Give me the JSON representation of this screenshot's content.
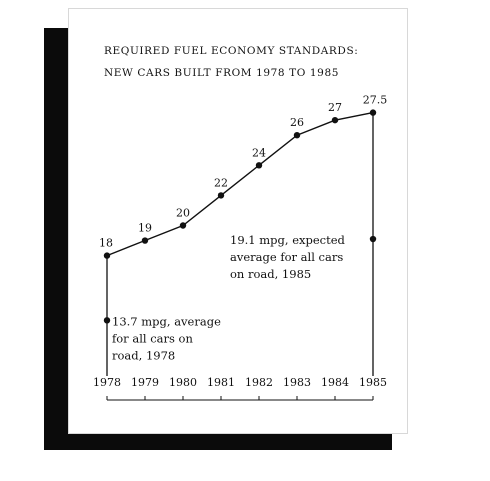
{
  "chart_data": {
    "type": "line",
    "title": [
      "REQUIRED FUEL ECONOMY STANDARDS:",
      "NEW CARS BUILT FROM 1978 TO 1985"
    ],
    "categories": [
      "1978",
      "1979",
      "1980",
      "1981",
      "1982",
      "1983",
      "1984",
      "1985"
    ],
    "series": [
      {
        "values": [
          18,
          19,
          20,
          22,
          24,
          26,
          27,
          27.5
        ]
      }
    ],
    "value_labels": [
      "18",
      "19",
      "20",
      "22",
      "24",
      "26",
      "27",
      "27.5"
    ],
    "ylim": [
      10,
      30
    ],
    "grid": false,
    "annotations": [
      {
        "category": "1978",
        "value": 13.7,
        "lines": [
          "13.7 mpg, average",
          "for all cars on",
          "road, 1978"
        ]
      },
      {
        "category": "1985",
        "value": 19.1,
        "lines": [
          "19.1 mpg, expected",
          "average for all cars",
          "on road, 1985"
        ]
      }
    ],
    "colors": {
      "line": "#111111",
      "shadow": "#0b0b0b",
      "card": "#ffffff"
    }
  }
}
